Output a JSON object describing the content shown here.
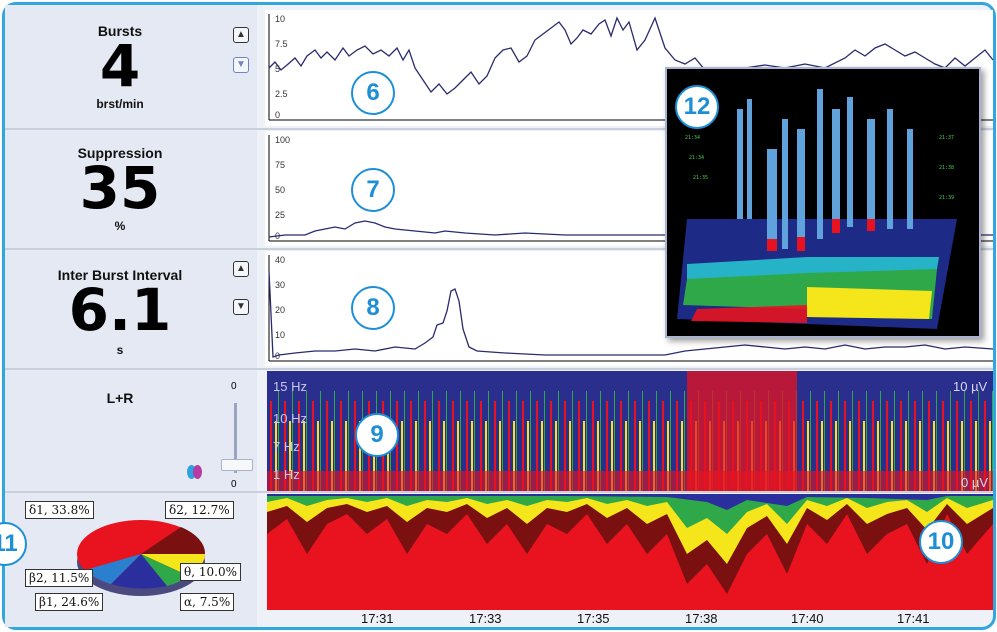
{
  "panels": {
    "bursts": {
      "label": "Bursts",
      "value": "4",
      "unit": "brst/min",
      "axis": [
        "10",
        "7.5",
        "5",
        "2.5",
        "0"
      ],
      "badge": "6"
    },
    "suppression": {
      "label": "Suppression",
      "value": "35",
      "unit": "%",
      "axis": [
        "100",
        "75",
        "50",
        "25",
        "0"
      ],
      "badge": "7"
    },
    "ibi": {
      "label": "Inter Burst Interval",
      "value": "6.1",
      "unit": "s",
      "axis": [
        "40",
        "30",
        "20",
        "10",
        "0"
      ],
      "badge": "8"
    },
    "lr": {
      "label": "L+R",
      "slider_top": "0",
      "slider_bottom": "0",
      "badge": "9",
      "freq_labels": [
        "15 Hz",
        "10 Hz",
        "7 Hz",
        "1 Hz"
      ],
      "top_right": "10 µV",
      "bottom_right": "0 µV"
    },
    "spectrum": {
      "badge": "10"
    },
    "pie": {
      "badge": "11",
      "slices": [
        {
          "label": "δ1, 33.8%",
          "value": 33.8,
          "color": "#e8131f"
        },
        {
          "label": "δ2, 12.7%",
          "value": 12.7,
          "color": "#7a1010"
        },
        {
          "label": "θ, 10.0%",
          "value": 10.0,
          "color": "#f5e61b"
        },
        {
          "label": "α, 7.5%",
          "value": 7.5,
          "color": "#2fa84a"
        },
        {
          "label": "β1, 24.6%",
          "value": 24.6,
          "color": "#2b2f9e"
        },
        {
          "label": "β2, 11.5%",
          "value": 11.5,
          "color": "#2a7fcf"
        }
      ]
    },
    "inset": {
      "badge": "12"
    }
  },
  "time_axis": [
    "17:31",
    "17:33",
    "17:35",
    "17:38",
    "17:40",
    "17:41"
  ],
  "colors": {
    "frame": "#32a6de",
    "badge": "#1e8fd6",
    "trace": "#2a2a6e"
  },
  "icons": {
    "spin_up": "chevron-up-icon",
    "spin_down": "chevron-down-icon",
    "color_toggle": "color-map-icon"
  }
}
